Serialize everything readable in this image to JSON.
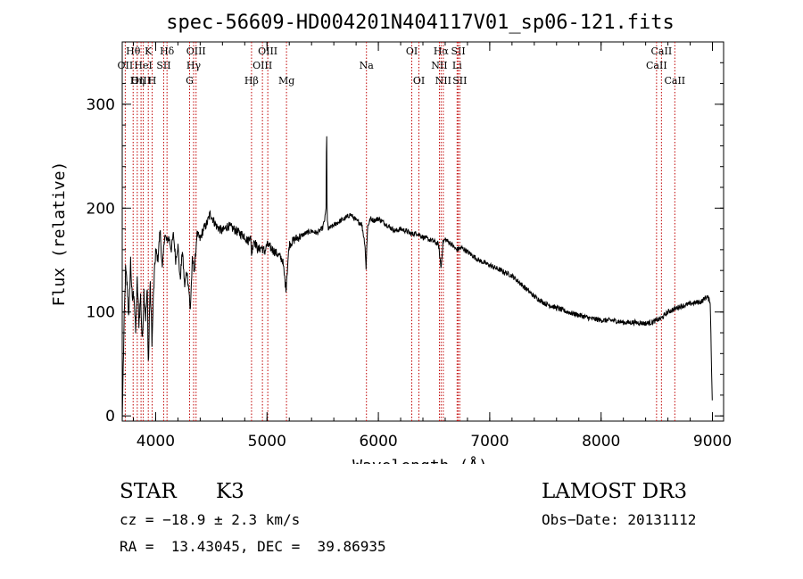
{
  "chart_data": {
    "type": "line",
    "title": "spec-56609-HD004201N404117V01_sp06-121.fits",
    "xlabel": "Wavelength (Å)",
    "ylabel": "Flux (relative)",
    "xlim": [
      3700,
      9100
    ],
    "ylim": [
      -5,
      360
    ],
    "x_ticks": [
      4000,
      5000,
      6000,
      7000,
      8000,
      9000
    ],
    "y_ticks": [
      0,
      100,
      200,
      300
    ],
    "x_minor_step": 200,
    "y_minor_step": 20,
    "spectral_lines": [
      {
        "label": "Hθ",
        "wavelength": 3798,
        "row": 0
      },
      {
        "label": "OII",
        "wavelength": 3727,
        "row": 1
      },
      {
        "label": "OIII",
        "wavelength": 3869,
        "row": 2
      },
      {
        "label": "K",
        "wavelength": 3934,
        "row": 0
      },
      {
        "label": "HeI",
        "wavelength": 3889,
        "row": 1
      },
      {
        "label": "Hη",
        "wavelength": 3835,
        "row": 2
      },
      {
        "label": "H",
        "wavelength": 3969,
        "row": 2
      },
      {
        "label": "Hδ",
        "wavelength": 4102,
        "row": 0
      },
      {
        "label": "SII",
        "wavelength": 4072,
        "row": 1
      },
      {
        "label": "OIII",
        "wavelength": 4363,
        "row": 0
      },
      {
        "label": "Hγ",
        "wavelength": 4341,
        "row": 1
      },
      {
        "label": "G",
        "wavelength": 4305,
        "row": 2
      },
      {
        "label": "Hβ",
        "wavelength": 4861,
        "row": 2
      },
      {
        "label": "OIII",
        "wavelength": 5007,
        "row": 0
      },
      {
        "label": "OIII",
        "wavelength": 4959,
        "row": 1
      },
      {
        "label": "Mg",
        "wavelength": 5175,
        "row": 2
      },
      {
        "label": "Na",
        "wavelength": 5893,
        "row": 1
      },
      {
        "label": "OI",
        "wavelength": 6300,
        "row": 0
      },
      {
        "label": "OI",
        "wavelength": 6364,
        "row": 2
      },
      {
        "label": "Hα",
        "wavelength": 6563,
        "row": 0
      },
      {
        "label": "NII",
        "wavelength": 6548,
        "row": 1
      },
      {
        "label": "NII",
        "wavelength": 6583,
        "row": 2
      },
      {
        "label": "SII",
        "wavelength": 6717,
        "row": 0
      },
      {
        "label": "Li",
        "wavelength": 6707,
        "row": 1
      },
      {
        "label": "SII",
        "wavelength": 6731,
        "row": 2
      },
      {
        "label": "CaII",
        "wavelength": 8542,
        "row": 0
      },
      {
        "label": "CaII",
        "wavelength": 8498,
        "row": 1
      },
      {
        "label": "CaII",
        "wavelength": 8662,
        "row": 2
      }
    ],
    "series": [
      {
        "name": "flux",
        "x": [
          3700,
          3715,
          3730,
          3745,
          3760,
          3775,
          3790,
          3805,
          3820,
          3835,
          3850,
          3865,
          3880,
          3895,
          3910,
          3925,
          3935,
          3950,
          3968,
          3980,
          4000,
          4020,
          4040,
          4060,
          4080,
          4100,
          4120,
          4140,
          4160,
          4180,
          4200,
          4220,
          4240,
          4260,
          4280,
          4300,
          4310,
          4330,
          4350,
          4370,
          4400,
          4430,
          4460,
          4490,
          4520,
          4550,
          4600,
          4650,
          4700,
          4750,
          4800,
          4830,
          4850,
          4862,
          4880,
          4900,
          4920,
          4950,
          4980,
          5000,
          5050,
          5100,
          5140,
          5170,
          5185,
          5200,
          5250,
          5300,
          5350,
          5400,
          5450,
          5500,
          5520,
          5530,
          5535,
          5540,
          5550,
          5580,
          5620,
          5660,
          5700,
          5750,
          5800,
          5850,
          5880,
          5890,
          5896,
          5905,
          5930,
          5960,
          6000,
          6050,
          6100,
          6150,
          6200,
          6250,
          6300,
          6350,
          6400,
          6450,
          6500,
          6540,
          6563,
          6580,
          6600,
          6650,
          6700,
          6750,
          6800,
          6900,
          7000,
          7100,
          7200,
          7300,
          7400,
          7500,
          7600,
          7700,
          7800,
          7900,
          8000,
          8100,
          8200,
          8300,
          8400,
          8450,
          8498,
          8542,
          8600,
          8662,
          8700,
          8800,
          8900,
          8950,
          8980,
          8995,
          9000
        ],
        "values": [
          -5,
          80,
          140,
          125,
          95,
          150,
          110,
          120,
          80,
          130,
          90,
          115,
          70,
          120,
          95,
          120,
          45,
          130,
          70,
          115,
          160,
          150,
          180,
          140,
          175,
          168,
          172,
          160,
          175,
          150,
          165,
          130,
          160,
          125,
          140,
          120,
          100,
          150,
          140,
          175,
          170,
          180,
          185,
          195,
          188,
          182,
          178,
          183,
          180,
          176,
          173,
          168,
          175,
          155,
          170,
          165,
          160,
          162,
          158,
          165,
          160,
          155,
          150,
          122,
          145,
          165,
          170,
          173,
          176,
          178,
          176,
          181,
          190,
          200,
          289,
          190,
          180,
          182,
          185,
          188,
          190,
          194,
          188,
          185,
          165,
          140,
          165,
          183,
          190,
          188,
          190,
          186,
          182,
          178,
          180,
          178,
          175,
          176,
          172,
          170,
          168,
          165,
          142,
          167,
          170,
          166,
          160,
          162,
          158,
          150,
          145,
          140,
          135,
          125,
          115,
          108,
          104,
          100,
          97,
          94,
          92,
          92,
          90,
          90,
          89,
          90,
          92,
          94,
          100,
          103,
          105,
          108,
          110,
          115,
          110,
          30,
          5
        ]
      }
    ]
  },
  "info": {
    "object_type": "STAR",
    "subclass": "K3",
    "survey": "LAMOST DR3",
    "redshift": "cz = −18.9 ± 2.3 km/s",
    "obs_date": "Obs−Date: 20131112",
    "coords": "RA =  13.43045, DEC =  39.86935"
  }
}
